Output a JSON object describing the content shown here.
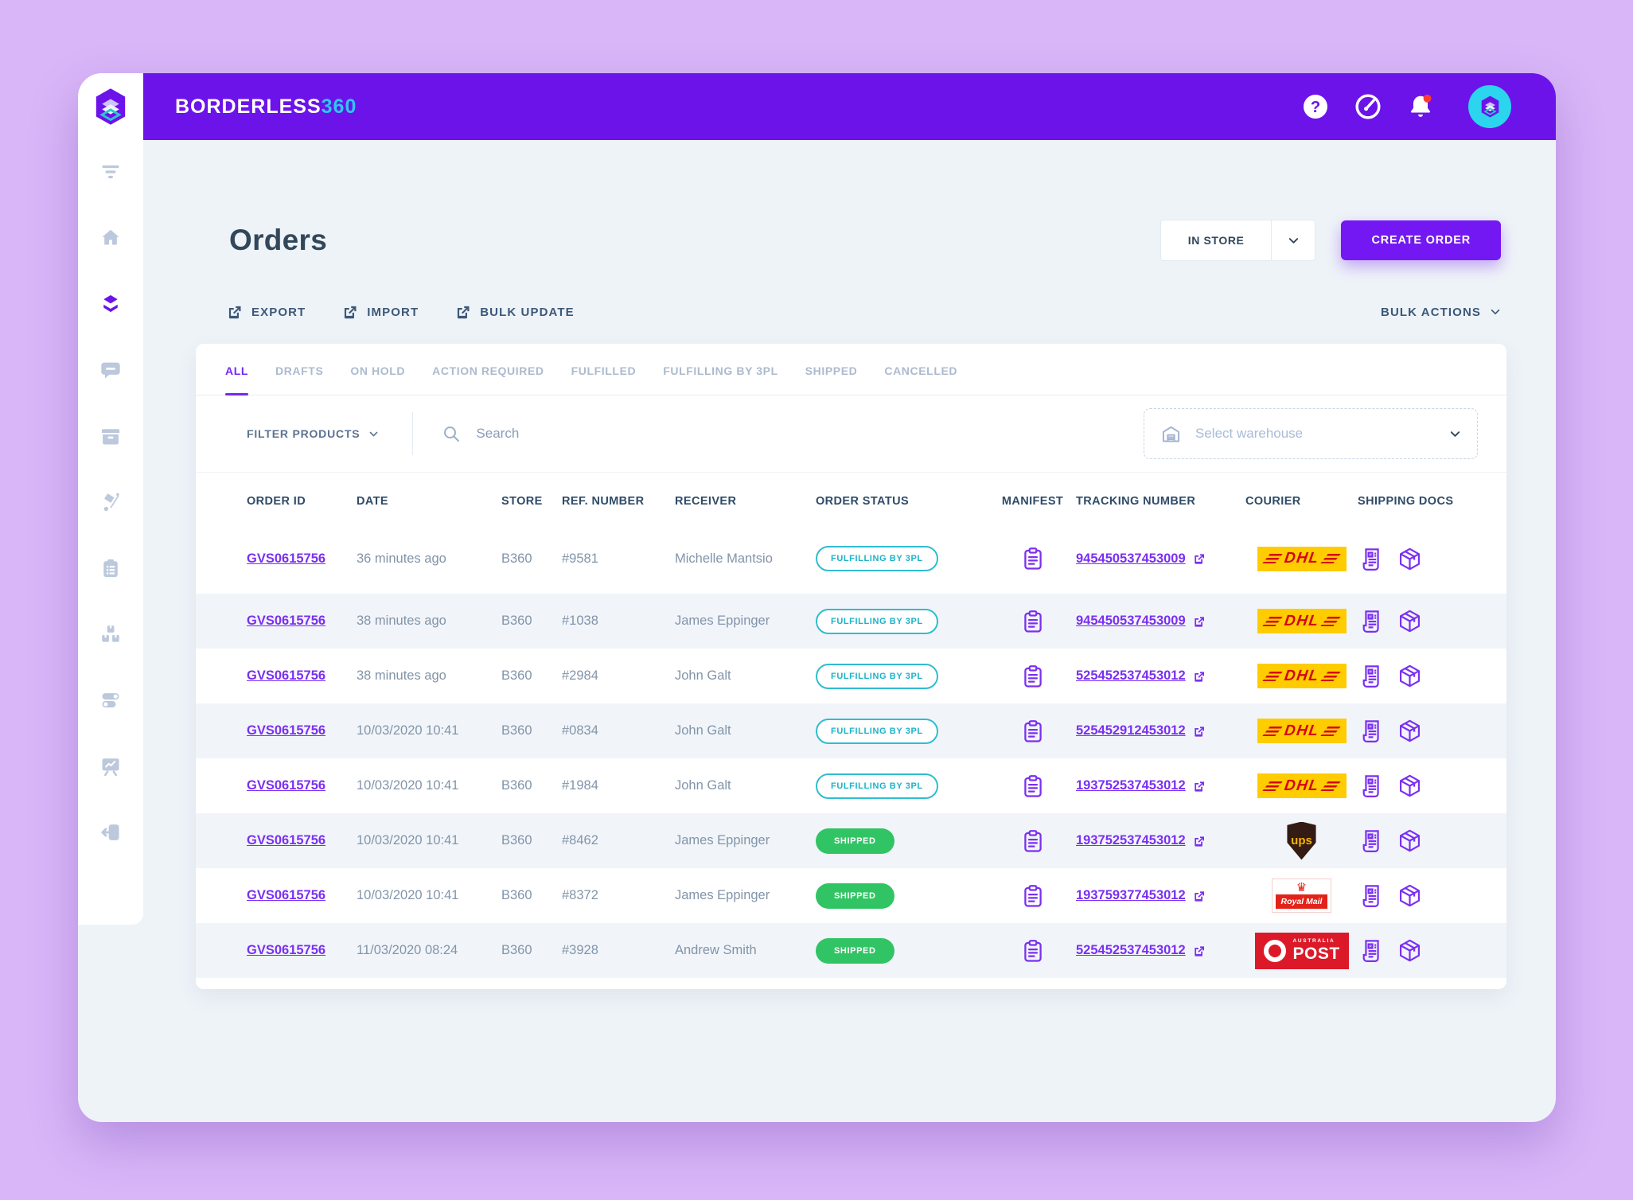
{
  "brand": {
    "name": "BORDERLESS",
    "suffix": "360"
  },
  "page": {
    "title": "Orders",
    "store_selector": {
      "value": "IN STORE"
    },
    "create_order_label": "CREATE ORDER",
    "toolbar": {
      "export_label": "EXPORT",
      "import_label": "IMPORT",
      "bulk_update_label": "BULK UPDATE",
      "bulk_actions_label": "BULK ACTIONS"
    }
  },
  "sidebar": {
    "items": [
      {
        "id": "filter",
        "icon": "filter",
        "active": false
      },
      {
        "id": "home",
        "icon": "home",
        "active": false
      },
      {
        "id": "orders",
        "icon": "layers",
        "active": true
      },
      {
        "id": "messages",
        "icon": "chat",
        "active": false
      },
      {
        "id": "inventory",
        "icon": "archive",
        "active": false
      },
      {
        "id": "shipments",
        "icon": "dolly",
        "active": false
      },
      {
        "id": "manifests",
        "icon": "clipboard",
        "active": false
      },
      {
        "id": "packages",
        "icon": "packages",
        "active": false
      },
      {
        "id": "settings",
        "icon": "toggles",
        "active": false
      },
      {
        "id": "reports",
        "icon": "presentation",
        "active": false
      },
      {
        "id": "logout",
        "icon": "logout",
        "active": false
      }
    ]
  },
  "tabs": [
    {
      "label": "ALL",
      "active": true
    },
    {
      "label": "DRAFTS",
      "active": false
    },
    {
      "label": "ON HOLD",
      "active": false
    },
    {
      "label": "ACTION REQUIRED",
      "active": false
    },
    {
      "label": "FULFILLED",
      "active": false
    },
    {
      "label": "FULFILLING BY 3PL",
      "active": false
    },
    {
      "label": "SHIPPED",
      "active": false
    },
    {
      "label": "CANCELLED",
      "active": false
    }
  ],
  "filters": {
    "filter_products_label": "FILTER PRODUCTS",
    "search_placeholder": "Search",
    "warehouse_placeholder": "Select warehouse"
  },
  "table": {
    "columns": [
      "ORDER ID",
      "DATE",
      "STORE",
      "REF. NUMBER",
      "RECEIVER",
      "ORDER STATUS",
      "MANIFEST",
      "TRACKING NUMBER",
      "COURIER",
      "SHIPPING DOCS"
    ],
    "rows": [
      {
        "order_id": "GVS0615756",
        "date": "36 minutes ago",
        "store": "B360",
        "ref": "#9581",
        "receiver": "Michelle Mantsio",
        "status": "FULFILLING BY 3PL",
        "status_type": "fulfilling",
        "tracking": "945450537453009",
        "courier": "DHL"
      },
      {
        "order_id": "GVS0615756",
        "date": "38 minutes ago",
        "store": "B360",
        "ref": "#1038",
        "receiver": "James Eppinger",
        "status": "FULFILLING BY 3PL",
        "status_type": "fulfilling",
        "tracking": "945450537453009",
        "courier": "DHL"
      },
      {
        "order_id": "GVS0615756",
        "date": "38 minutes ago",
        "store": "B360",
        "ref": "#2984",
        "receiver": "John Galt",
        "status": "FULFILLING BY 3PL",
        "status_type": "fulfilling",
        "tracking": "525452537453012",
        "courier": "DHL"
      },
      {
        "order_id": "GVS0615756",
        "date": "10/03/2020 10:41",
        "store": "B360",
        "ref": "#0834",
        "receiver": "John Galt",
        "status": "FULFILLING BY 3PL",
        "status_type": "fulfilling",
        "tracking": "525452912453012",
        "courier": "DHL"
      },
      {
        "order_id": "GVS0615756",
        "date": "10/03/2020 10:41",
        "store": "B360",
        "ref": "#1984",
        "receiver": "John Galt",
        "status": "FULFILLING BY 3PL",
        "status_type": "fulfilling",
        "tracking": "193752537453012",
        "courier": "DHL"
      },
      {
        "order_id": "GVS0615756",
        "date": "10/03/2020 10:41",
        "store": "B360",
        "ref": "#8462",
        "receiver": "James Eppinger",
        "status": "SHIPPED",
        "status_type": "shipped",
        "tracking": "193752537453012",
        "courier": "UPS"
      },
      {
        "order_id": "GVS0615756",
        "date": "10/03/2020 10:41",
        "store": "B360",
        "ref": "#8372",
        "receiver": "James Eppinger",
        "status": "SHIPPED",
        "status_type": "shipped",
        "tracking": "193759377453012",
        "courier": "Royal Mail"
      },
      {
        "order_id": "GVS0615756",
        "date": "11/03/2020 08:24",
        "store": "B360",
        "ref": "#3928",
        "receiver": "Andrew Smith",
        "status": "SHIPPED",
        "status_type": "shipped",
        "tracking": "525452537453012",
        "courier": "Australia Post"
      }
    ]
  },
  "couriers": {
    "DHL": {
      "type": "dhl",
      "text": "DHL"
    },
    "UPS": {
      "type": "ups",
      "text": "ups"
    },
    "Royal Mail": {
      "type": "royalmail",
      "crown": "♛",
      "text": "Royal Mail"
    },
    "Australia Post": {
      "type": "auspost",
      "line1": "AUSTRALIA",
      "line2": "POST"
    }
  },
  "colors": {
    "primary_purple": "#6C13EA",
    "accent_cyan": "#2BC9F2",
    "link_purple": "#7B2FF2",
    "status_teal": "#1CB3C9",
    "status_green": "#31C464",
    "dhl_yellow": "#FFCC00",
    "dhl_red": "#D40511",
    "ups_brown": "#341B14",
    "ups_gold": "#F7B500",
    "royal_mail_red": "#E2231A",
    "auspost_red": "#DC1928",
    "notification_dot": "#FF3B30"
  }
}
